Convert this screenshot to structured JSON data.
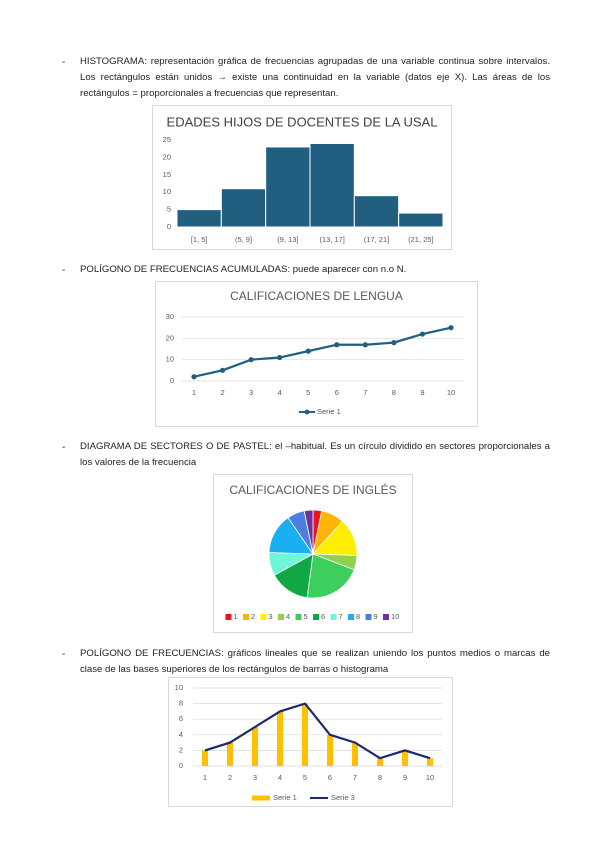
{
  "paragraphs": [
    "HISTOGRAMA: representación gráfica de frecuencias agrupadas de una variable continua sobre intervalos. Los rectángulos están unidos → existe una continuidad en la variable (datos eje X). Las áreas de los rectángulos = proporcionales a frecuencias que representan.",
    "POLÍGONO DE FRECUENCIAS ACUMULADAS: puede aparecer con n.o N.",
    "DIAGRAMA DE SECTORES O DE PASTEL: el –habitual. Es un círculo dividido en sectores proporcionales a los valores de la frecuencia",
    "POLÍGONO DE FRECUENCIAS: gráficos lineales que se realizan uniendo los puntos medios o marcas de clase de las bases superiores de los rectángulos de barras o histograma"
  ],
  "chart_data": [
    {
      "type": "histogram",
      "title": "EDADES HIJOS DE DOCENTES DE LA USAL",
      "categories": [
        "[1, 5]",
        "(5, 9]",
        "(9, 13]",
        "(13, 17]",
        "(17, 21]",
        "(21, 25]"
      ],
      "values": [
        5,
        11,
        23,
        24,
        9,
        4
      ],
      "color": "#215f80",
      "ylim": [
        0,
        25
      ],
      "yticks": [
        0,
        5,
        10,
        15,
        20,
        25
      ]
    },
    {
      "type": "line",
      "title": "CALIFICACIONES DE LENGUA",
      "categories": [
        "1",
        "2",
        "3",
        "4",
        "5",
        "6",
        "7",
        "8",
        "9",
        "10"
      ],
      "series": [
        {
          "name": "Serie 1",
          "color": "#215f80",
          "values": [
            2,
            5,
            10,
            11,
            14,
            17,
            17,
            18,
            22,
            25
          ]
        }
      ],
      "ylim": [
        0,
        30
      ],
      "yticks": [
        0,
        10,
        20,
        30
      ],
      "grid": true
    },
    {
      "type": "pie",
      "title": "CALIFICACIONES DE INGLÉS",
      "categories": [
        "1",
        "2",
        "3",
        "4",
        "5",
        "6",
        "7",
        "8",
        "9",
        "10"
      ],
      "values": [
        3,
        8,
        13,
        5,
        20,
        14,
        8,
        14,
        6,
        3
      ],
      "colors": [
        "#e8141e",
        "#ffb400",
        "#ffee00",
        "#92d050",
        "#3ccf5e",
        "#10a845",
        "#6ff5d8",
        "#18b0f0",
        "#4d7fe0",
        "#7030a0"
      ]
    },
    {
      "type": "combo",
      "categories": [
        "1",
        "2",
        "3",
        "4",
        "5",
        "6",
        "7",
        "8",
        "9",
        "10"
      ],
      "series": [
        {
          "name": "Serie 1",
          "type": "bar",
          "color": "#ffc000",
          "values": [
            2,
            3,
            5,
            7,
            8,
            4,
            3,
            1,
            2,
            1
          ]
        },
        {
          "name": "Serie 3",
          "type": "line",
          "color": "#1a2a6c",
          "values": [
            2,
            3,
            5,
            7,
            8,
            4,
            3,
            1,
            2,
            1
          ]
        }
      ],
      "ylim": [
        0,
        10
      ],
      "yticks": [
        0,
        2,
        4,
        6,
        8,
        10
      ],
      "grid": true
    }
  ]
}
